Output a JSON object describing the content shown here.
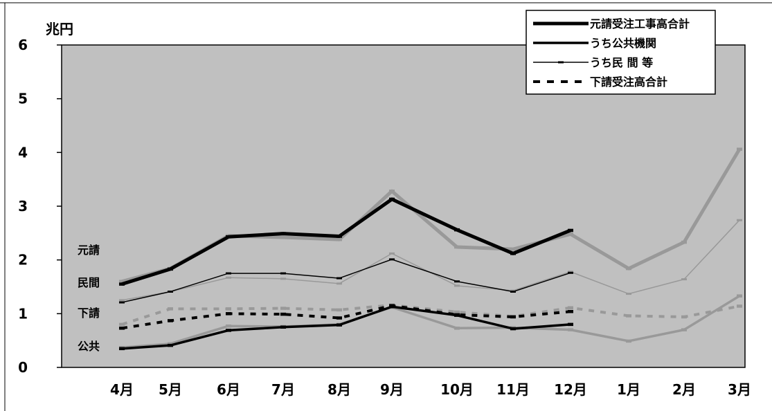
{
  "chart_data": {
    "type": "line",
    "ylabel": "兆円",
    "ylim": [
      0,
      6
    ],
    "yticks": [
      "0",
      "1",
      "2",
      "3",
      "4",
      "5",
      "6"
    ],
    "categories": [
      "4月",
      "5月",
      "6月",
      "7月",
      "8月",
      "9月",
      "10月",
      "11月",
      "12月",
      "1月",
      "2月",
      "3月"
    ],
    "grid": false,
    "legend_position": "top-right",
    "series_labels": {
      "motouke": "元請",
      "minkan": "民間",
      "shitauke": "下請",
      "kokyo": "公共"
    },
    "colors": {
      "plot_bg": "#c0c0c0",
      "current": "#000000",
      "previous": "#999999"
    },
    "series": [
      {
        "key": "motouke",
        "name": "元請受注工事高合計",
        "style": "thick",
        "values": [
          1.55,
          1.83,
          2.43,
          2.49,
          2.44,
          3.13,
          2.56,
          2.12,
          2.55,
          null,
          null,
          null
        ],
        "previous": [
          1.6,
          1.84,
          2.45,
          2.42,
          2.38,
          3.28,
          2.24,
          2.2,
          2.48,
          1.84,
          2.33,
          4.06
        ]
      },
      {
        "key": "kokyo",
        "name": "うち公共機関",
        "style": "medium",
        "values": [
          0.35,
          0.41,
          0.69,
          0.75,
          0.79,
          1.13,
          0.97,
          0.72,
          0.8,
          null,
          null,
          null
        ],
        "previous": [
          0.37,
          0.44,
          0.77,
          0.76,
          0.8,
          1.12,
          0.73,
          0.74,
          0.7,
          0.49,
          0.7,
          1.33
        ]
      },
      {
        "key": "minkan",
        "name": "うち民 間 等",
        "style": "thin",
        "values": [
          1.21,
          1.41,
          1.75,
          1.75,
          1.66,
          2.01,
          1.6,
          1.41,
          1.76,
          null,
          null,
          null
        ],
        "previous": [
          1.25,
          1.41,
          1.67,
          1.65,
          1.56,
          2.12,
          1.52,
          1.43,
          1.78,
          1.37,
          1.64,
          2.74
        ]
      },
      {
        "key": "shitauke",
        "name": "下請受注高合計",
        "style": "dashed",
        "values": [
          0.73,
          0.87,
          1.0,
          0.99,
          0.92,
          1.15,
          0.98,
          0.94,
          1.04,
          null,
          null,
          null
        ],
        "previous": [
          0.8,
          1.09,
          1.09,
          1.1,
          1.07,
          1.16,
          1.03,
          0.95,
          1.11,
          0.96,
          0.94,
          1.14
        ]
      }
    ]
  }
}
